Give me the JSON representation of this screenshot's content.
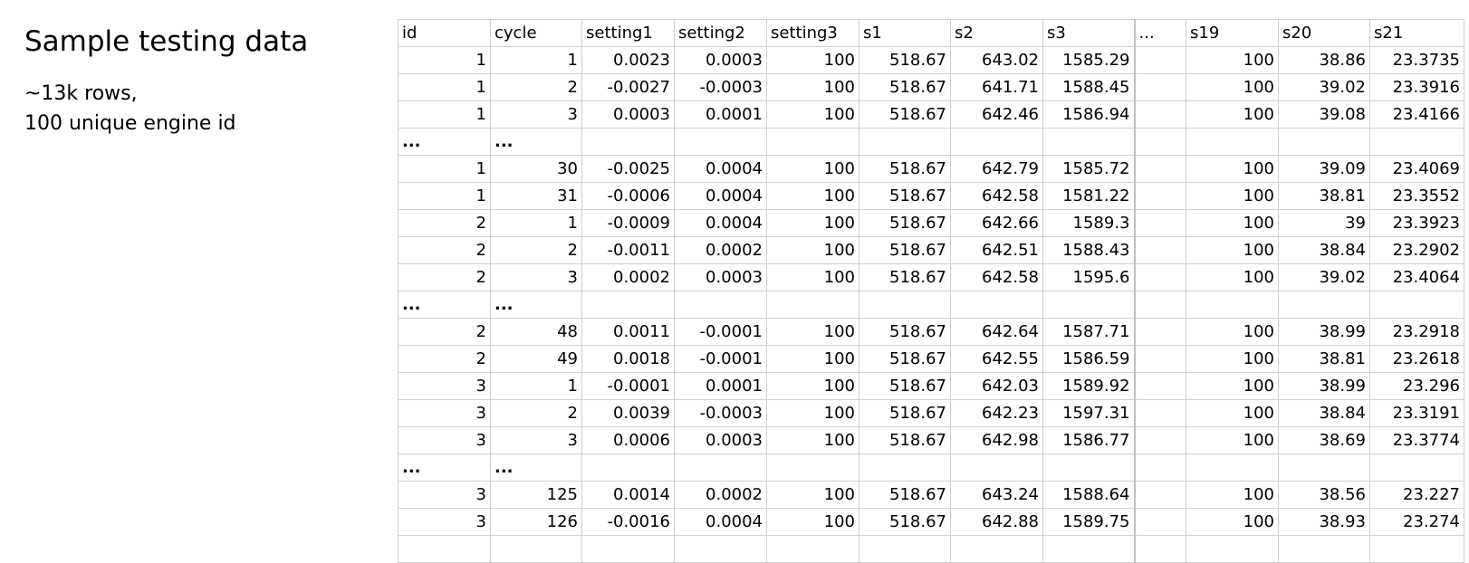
{
  "title": "Sample testing data",
  "description": [
    "~13k rows,",
    "100 unique engine id"
  ],
  "table": {
    "headers": [
      "id",
      "cycle",
      "setting1",
      "setting2",
      "setting3",
      "s1",
      "s2",
      "s3",
      "...",
      "s19",
      "s20",
      "s21"
    ],
    "rows": [
      [
        "1",
        "1",
        "0.0023",
        "0.0003",
        "100",
        "518.67",
        "643.02",
        "1585.29",
        "",
        "100",
        "38.86",
        "23.3735"
      ],
      [
        "1",
        "2",
        "-0.0027",
        "-0.0003",
        "100",
        "518.67",
        "641.71",
        "1588.45",
        "",
        "100",
        "39.02",
        "23.3916"
      ],
      [
        "1",
        "3",
        "0.0003",
        "0.0001",
        "100",
        "518.67",
        "642.46",
        "1586.94",
        "",
        "100",
        "39.08",
        "23.4166"
      ],
      [
        "...",
        "...",
        "",
        "",
        "",
        "",
        "",
        "",
        "",
        "",
        "",
        ""
      ],
      [
        "1",
        "30",
        "-0.0025",
        "0.0004",
        "100",
        "518.67",
        "642.79",
        "1585.72",
        "",
        "100",
        "39.09",
        "23.4069"
      ],
      [
        "1",
        "31",
        "-0.0006",
        "0.0004",
        "100",
        "518.67",
        "642.58",
        "1581.22",
        "",
        "100",
        "38.81",
        "23.3552"
      ],
      [
        "2",
        "1",
        "-0.0009",
        "0.0004",
        "100",
        "518.67",
        "642.66",
        "1589.3",
        "",
        "100",
        "39",
        "23.3923"
      ],
      [
        "2",
        "2",
        "-0.0011",
        "0.0002",
        "100",
        "518.67",
        "642.51",
        "1588.43",
        "",
        "100",
        "38.84",
        "23.2902"
      ],
      [
        "2",
        "3",
        "0.0002",
        "0.0003",
        "100",
        "518.67",
        "642.58",
        "1595.6",
        "",
        "100",
        "39.02",
        "23.4064"
      ],
      [
        "...",
        "...",
        "",
        "",
        "",
        "",
        "",
        "",
        "",
        "",
        "",
        ""
      ],
      [
        "2",
        "48",
        "0.0011",
        "-0.0001",
        "100",
        "518.67",
        "642.64",
        "1587.71",
        "",
        "100",
        "38.99",
        "23.2918"
      ],
      [
        "2",
        "49",
        "0.0018",
        "-0.0001",
        "100",
        "518.67",
        "642.55",
        "1586.59",
        "",
        "100",
        "38.81",
        "23.2618"
      ],
      [
        "3",
        "1",
        "-0.0001",
        "0.0001",
        "100",
        "518.67",
        "642.03",
        "1589.92",
        "",
        "100",
        "38.99",
        "23.296"
      ],
      [
        "3",
        "2",
        "0.0039",
        "-0.0003",
        "100",
        "518.67",
        "642.23",
        "1597.31",
        "",
        "100",
        "38.84",
        "23.3191"
      ],
      [
        "3",
        "3",
        "0.0006",
        "0.0003",
        "100",
        "518.67",
        "642.98",
        "1586.77",
        "",
        "100",
        "38.69",
        "23.3774"
      ],
      [
        "...",
        "...",
        "",
        "",
        "",
        "",
        "",
        "",
        "",
        "",
        "",
        ""
      ],
      [
        "3",
        "125",
        "0.0014",
        "0.0002",
        "100",
        "518.67",
        "643.24",
        "1588.64",
        "",
        "100",
        "38.56",
        "23.227"
      ],
      [
        "3",
        "126",
        "-0.0016",
        "0.0004",
        "100",
        "518.67",
        "642.88",
        "1589.75",
        "",
        "100",
        "38.93",
        "23.274"
      ],
      [
        "",
        "",
        "",
        "",
        "",
        "",
        "",
        "",
        "",
        "",
        "",
        ""
      ]
    ]
  }
}
